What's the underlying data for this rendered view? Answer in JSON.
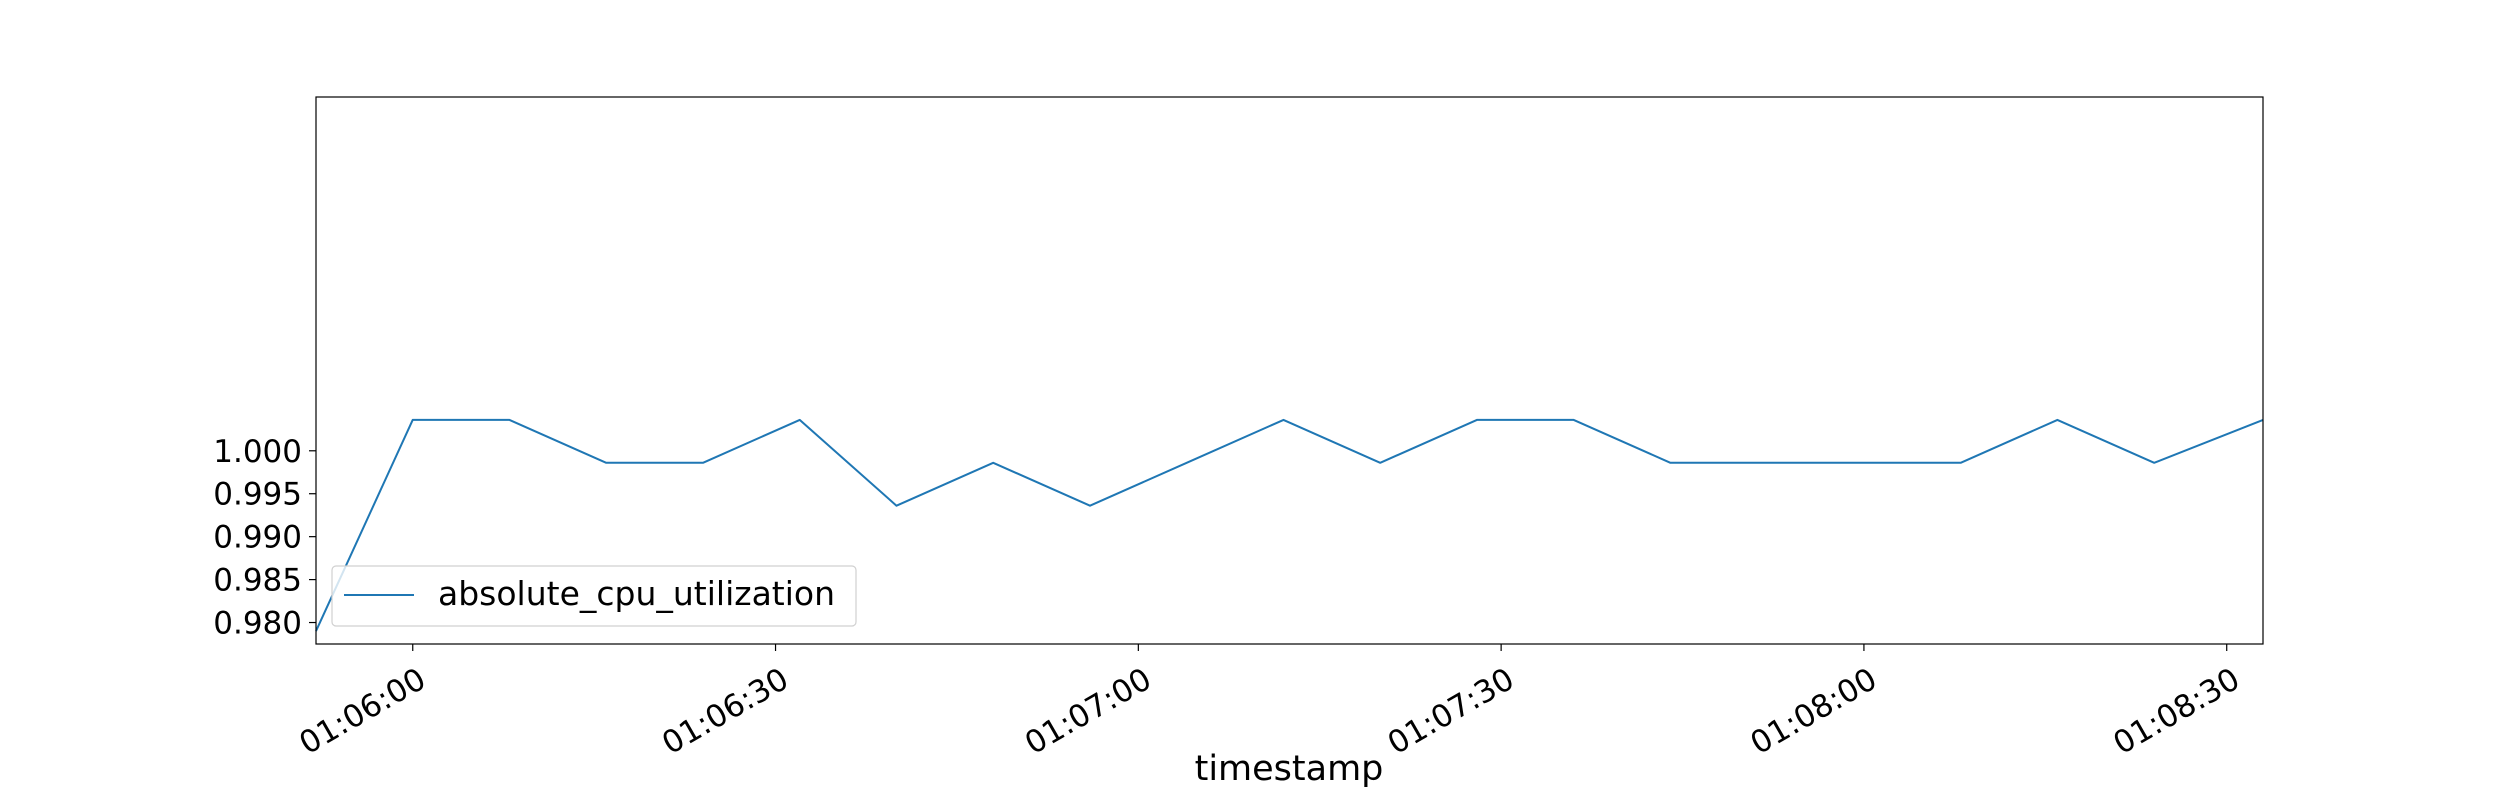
{
  "chart_data": {
    "type": "line",
    "title": "",
    "xlabel": "timestamp",
    "ylabel": "",
    "x_ticks": [
      "01:06:00",
      "01:06:30",
      "01:07:00",
      "01:07:30",
      "01:08:00",
      "01:08:30"
    ],
    "y_ticks": [
      "0.980",
      "0.985",
      "0.990",
      "0.995",
      "1.000"
    ],
    "xlim": [
      "01:05:52",
      "01:08:33"
    ],
    "ylim": [
      0.9775,
      1.0412
    ],
    "grid": false,
    "legend_position": "lower-left",
    "x": [
      "01:05:52",
      "01:06:00",
      "01:06:08",
      "01:06:16",
      "01:06:24",
      "01:06:32",
      "01:06:40",
      "01:06:48",
      "01:06:56",
      "01:07:04",
      "01:07:12",
      "01:07:20",
      "01:07:28",
      "01:07:36",
      "01:07:44",
      "01:07:52",
      "01:08:00",
      "01:08:08",
      "01:08:16",
      "01:08:24",
      "01:08:33"
    ],
    "series": [
      {
        "name": "absolute_cpu_utilization",
        "color": "#1f77b4",
        "values": [
          0.979,
          1.0036,
          1.0036,
          0.9986,
          0.9986,
          1.0036,
          0.9936,
          0.9986,
          0.9936,
          0.9986,
          1.0036,
          0.9986,
          1.0036,
          1.0036,
          0.9986,
          0.9986,
          0.9986,
          0.9986,
          1.0036,
          0.9986,
          1.0036
        ]
      }
    ]
  }
}
